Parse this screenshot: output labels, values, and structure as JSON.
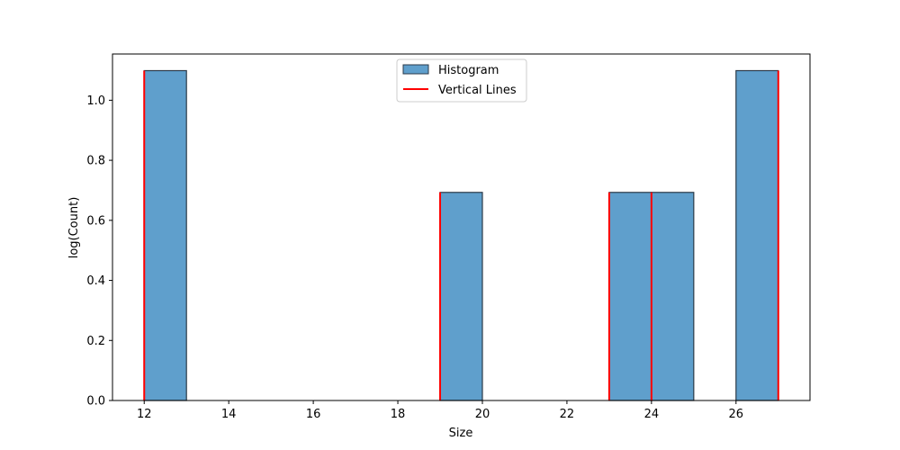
{
  "chart_data": {
    "type": "bar",
    "title": "",
    "xlabel": "Size",
    "ylabel": "log(Count)",
    "xlim": [
      11.25,
      27.75
    ],
    "ylim": [
      0,
      1.154
    ],
    "xticks": [
      12,
      14,
      16,
      18,
      20,
      22,
      24,
      26
    ],
    "yticks": [
      0.0,
      0.2,
      0.4,
      0.6,
      0.8,
      1.0
    ],
    "ytick_labels": [
      "0.0",
      "0.2",
      "0.4",
      "0.6",
      "0.8",
      "1.0"
    ],
    "legend_position": "upper center",
    "series": [
      {
        "name": "Histogram",
        "kind": "histogram",
        "color": "#5f9fcc",
        "edge_color": "#2b3a48",
        "bins": [
          {
            "x0": 12,
            "x1": 13,
            "value": 1.0986
          },
          {
            "x0": 19,
            "x1": 20,
            "value": 0.6931
          },
          {
            "x0": 23,
            "x1": 24,
            "value": 0.6931
          },
          {
            "x0": 24,
            "x1": 25,
            "value": 0.6931
          },
          {
            "x0": 26,
            "x1": 27,
            "value": 1.0986
          }
        ]
      },
      {
        "name": "Vertical Lines",
        "kind": "vlines",
        "color": "#ff0000",
        "lines": [
          {
            "x": 12,
            "y": 1.0986
          },
          {
            "x": 19,
            "y": 0.6931
          },
          {
            "x": 23,
            "y": 0.6931
          },
          {
            "x": 24,
            "y": 0.6931
          },
          {
            "x": 27,
            "y": 1.0986
          }
        ]
      }
    ]
  }
}
